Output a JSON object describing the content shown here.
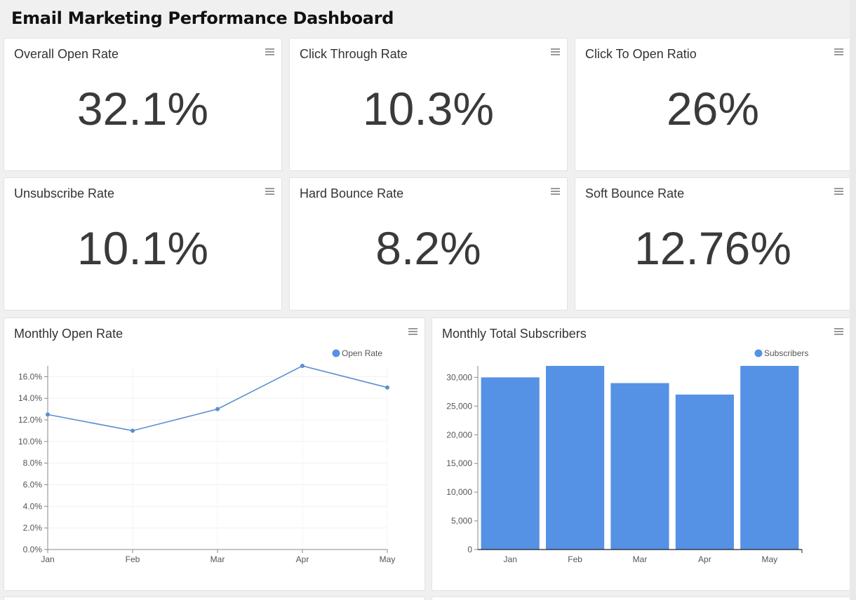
{
  "dashboard": {
    "title": "Email Marketing Performance Dashboard"
  },
  "kpis": [
    {
      "title": "Overall Open Rate",
      "value": "32.1%"
    },
    {
      "title": "Click Through Rate",
      "value": "10.3%"
    },
    {
      "title": "Click To Open Ratio",
      "value": "26%"
    },
    {
      "title": "Unsubscribe Rate",
      "value": "10.1%"
    },
    {
      "title": "Hard Bounce Rate",
      "value": "8.2%"
    },
    {
      "title": "Soft Bounce Rate",
      "value": "12.76%"
    }
  ],
  "charts": {
    "open_rate": {
      "title": "Monthly Open Rate",
      "legend": "Open Rate"
    },
    "subscribers": {
      "title": "Monthly Total Subscribers",
      "legend": "Subscribers"
    }
  },
  "colors": {
    "accent": "#5591e5",
    "line": "#5b8fd1"
  },
  "icons": {
    "card_menu": "hamburger-menu-icon"
  },
  "chart_data": [
    {
      "type": "line",
      "title": "Monthly Open Rate",
      "categories": [
        "Jan",
        "Feb",
        "Mar",
        "Apr",
        "May"
      ],
      "series": [
        {
          "name": "Open Rate",
          "values": [
            12.5,
            11.0,
            13.0,
            17.0,
            15.0
          ]
        }
      ],
      "ylim": [
        0,
        17
      ],
      "yticks": [
        "0.0%",
        "2.0%",
        "4.0%",
        "6.0%",
        "8.0%",
        "10.0%",
        "12.0%",
        "14.0%",
        "16.0%"
      ],
      "ytick_values": [
        0,
        2,
        4,
        6,
        8,
        10,
        12,
        14,
        16
      ],
      "grid": true,
      "legend_position": "top-right"
    },
    {
      "type": "bar",
      "title": "Monthly Total Subscribers",
      "categories": [
        "Jan",
        "Feb",
        "Mar",
        "Apr",
        "May"
      ],
      "series": [
        {
          "name": "Subscribers",
          "values": [
            30000,
            32000,
            29000,
            27000,
            32000
          ]
        }
      ],
      "ylim": [
        0,
        32000
      ],
      "yticks": [
        "0",
        "5,000",
        "10,000",
        "15,000",
        "20,000",
        "25,000",
        "30,000"
      ],
      "ytick_values": [
        0,
        5000,
        10000,
        15000,
        20000,
        25000,
        30000
      ],
      "grid": false,
      "legend_position": "top-right"
    }
  ]
}
